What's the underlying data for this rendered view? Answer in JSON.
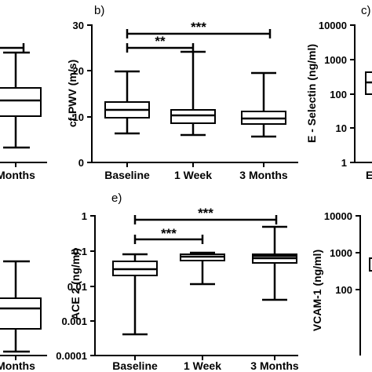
{
  "chart_data": [
    {
      "panel_label": "",
      "type": "box",
      "ylabel": "",
      "xlabel": "",
      "categories": [
        "",
        "",
        "Months"
      ],
      "ylim": [
        0,
        30
      ],
      "boxes": [
        {
          "category": "Months",
          "min": 3,
          "q1": 10,
          "median": 13,
          "q3": 16,
          "max": 24.5
        }
      ],
      "yticks": []
    },
    {
      "panel_label": "b)",
      "type": "box",
      "ylabel": "cf-PWV (m/s)",
      "xlabel": "",
      "categories": [
        "Baseline",
        "1 Week",
        "3 Months"
      ],
      "ylim": [
        0,
        30
      ],
      "yticks": [
        "0",
        "10",
        "20",
        "30"
      ],
      "boxes": [
        {
          "category": "Baseline",
          "min": 6.3,
          "q1": 9.8,
          "median": 11.4,
          "q3": 13.2,
          "max": 19.8
        },
        {
          "category": "1 Week",
          "min": 6.0,
          "q1": 8.6,
          "median": 10.2,
          "q3": 11.5,
          "max": 24.2
        },
        {
          "category": "3 Months",
          "min": 5.6,
          "q1": 8.5,
          "median": 9.6,
          "q3": 11.0,
          "max": 19.5
        }
      ],
      "significance": [
        {
          "from": "Baseline",
          "to": "1 Week",
          "label": "**"
        },
        {
          "from": "Baseline",
          "to": "3 Months",
          "label": "***"
        }
      ]
    },
    {
      "panel_label": "c)",
      "type": "box",
      "ylabel": "E - Selectin (ng/ml)",
      "xlabel": "",
      "scale": "log",
      "categories": [
        "E"
      ],
      "ylim": [
        1,
        10000
      ],
      "yticks": [
        "1",
        "10",
        "100",
        "1000",
        "10000"
      ],
      "boxes": [
        {
          "category": "E",
          "min": 40,
          "q1": 120,
          "median": 220,
          "q3": 420,
          "max": 700
        }
      ]
    },
    {
      "panel_label": "",
      "type": "box",
      "ylabel": "",
      "xlabel": "",
      "categories": [
        "",
        "",
        "Months"
      ],
      "boxes": [
        {
          "category": "Months",
          "min": 0.0002,
          "q1": 0.01,
          "median": 0.022,
          "q3": 0.05,
          "max": 0.6
        }
      ],
      "yticks": []
    },
    {
      "panel_label": "e)",
      "type": "box",
      "ylabel": "ACE 2 (ng/ml)",
      "xlabel": "",
      "scale": "log",
      "categories": [
        "Baseline",
        "1 Week",
        "3 Months"
      ],
      "ylim": [
        0.0001,
        1
      ],
      "yticks": [
        "0.0001",
        "0.001",
        "0.01",
        "0.1",
        "1"
      ],
      "boxes": [
        {
          "category": "Baseline",
          "min": 0.0004,
          "q1": 0.021,
          "median": 0.03,
          "q3": 0.055,
          "max": 0.09
        },
        {
          "category": "1 Week",
          "min": 0.012,
          "q1": 0.057,
          "median": 0.072,
          "q3": 0.093,
          "max": 0.105
        },
        {
          "category": "3 Months",
          "min": 0.0043,
          "q1": 0.05,
          "median": 0.066,
          "q3": 0.083,
          "max": 0.55
        }
      ],
      "significance": [
        {
          "from": "Baseline",
          "to": "1 Week",
          "label": "***"
        },
        {
          "from": "Baseline",
          "to": "3 Months",
          "label": "***"
        }
      ]
    },
    {
      "panel_label": "",
      "type": "box",
      "ylabel": "VCAM-1 (ng/ml)",
      "xlabel": "",
      "scale": "log",
      "categories": [],
      "ylim": [
        1,
        10000
      ],
      "yticks": [
        "10000",
        "1000",
        "100"
      ],
      "boxes": [
        {
          "category": "",
          "min": 100,
          "q1": 200,
          "median": 450,
          "q3": 600,
          "max": 1200
        }
      ]
    }
  ]
}
